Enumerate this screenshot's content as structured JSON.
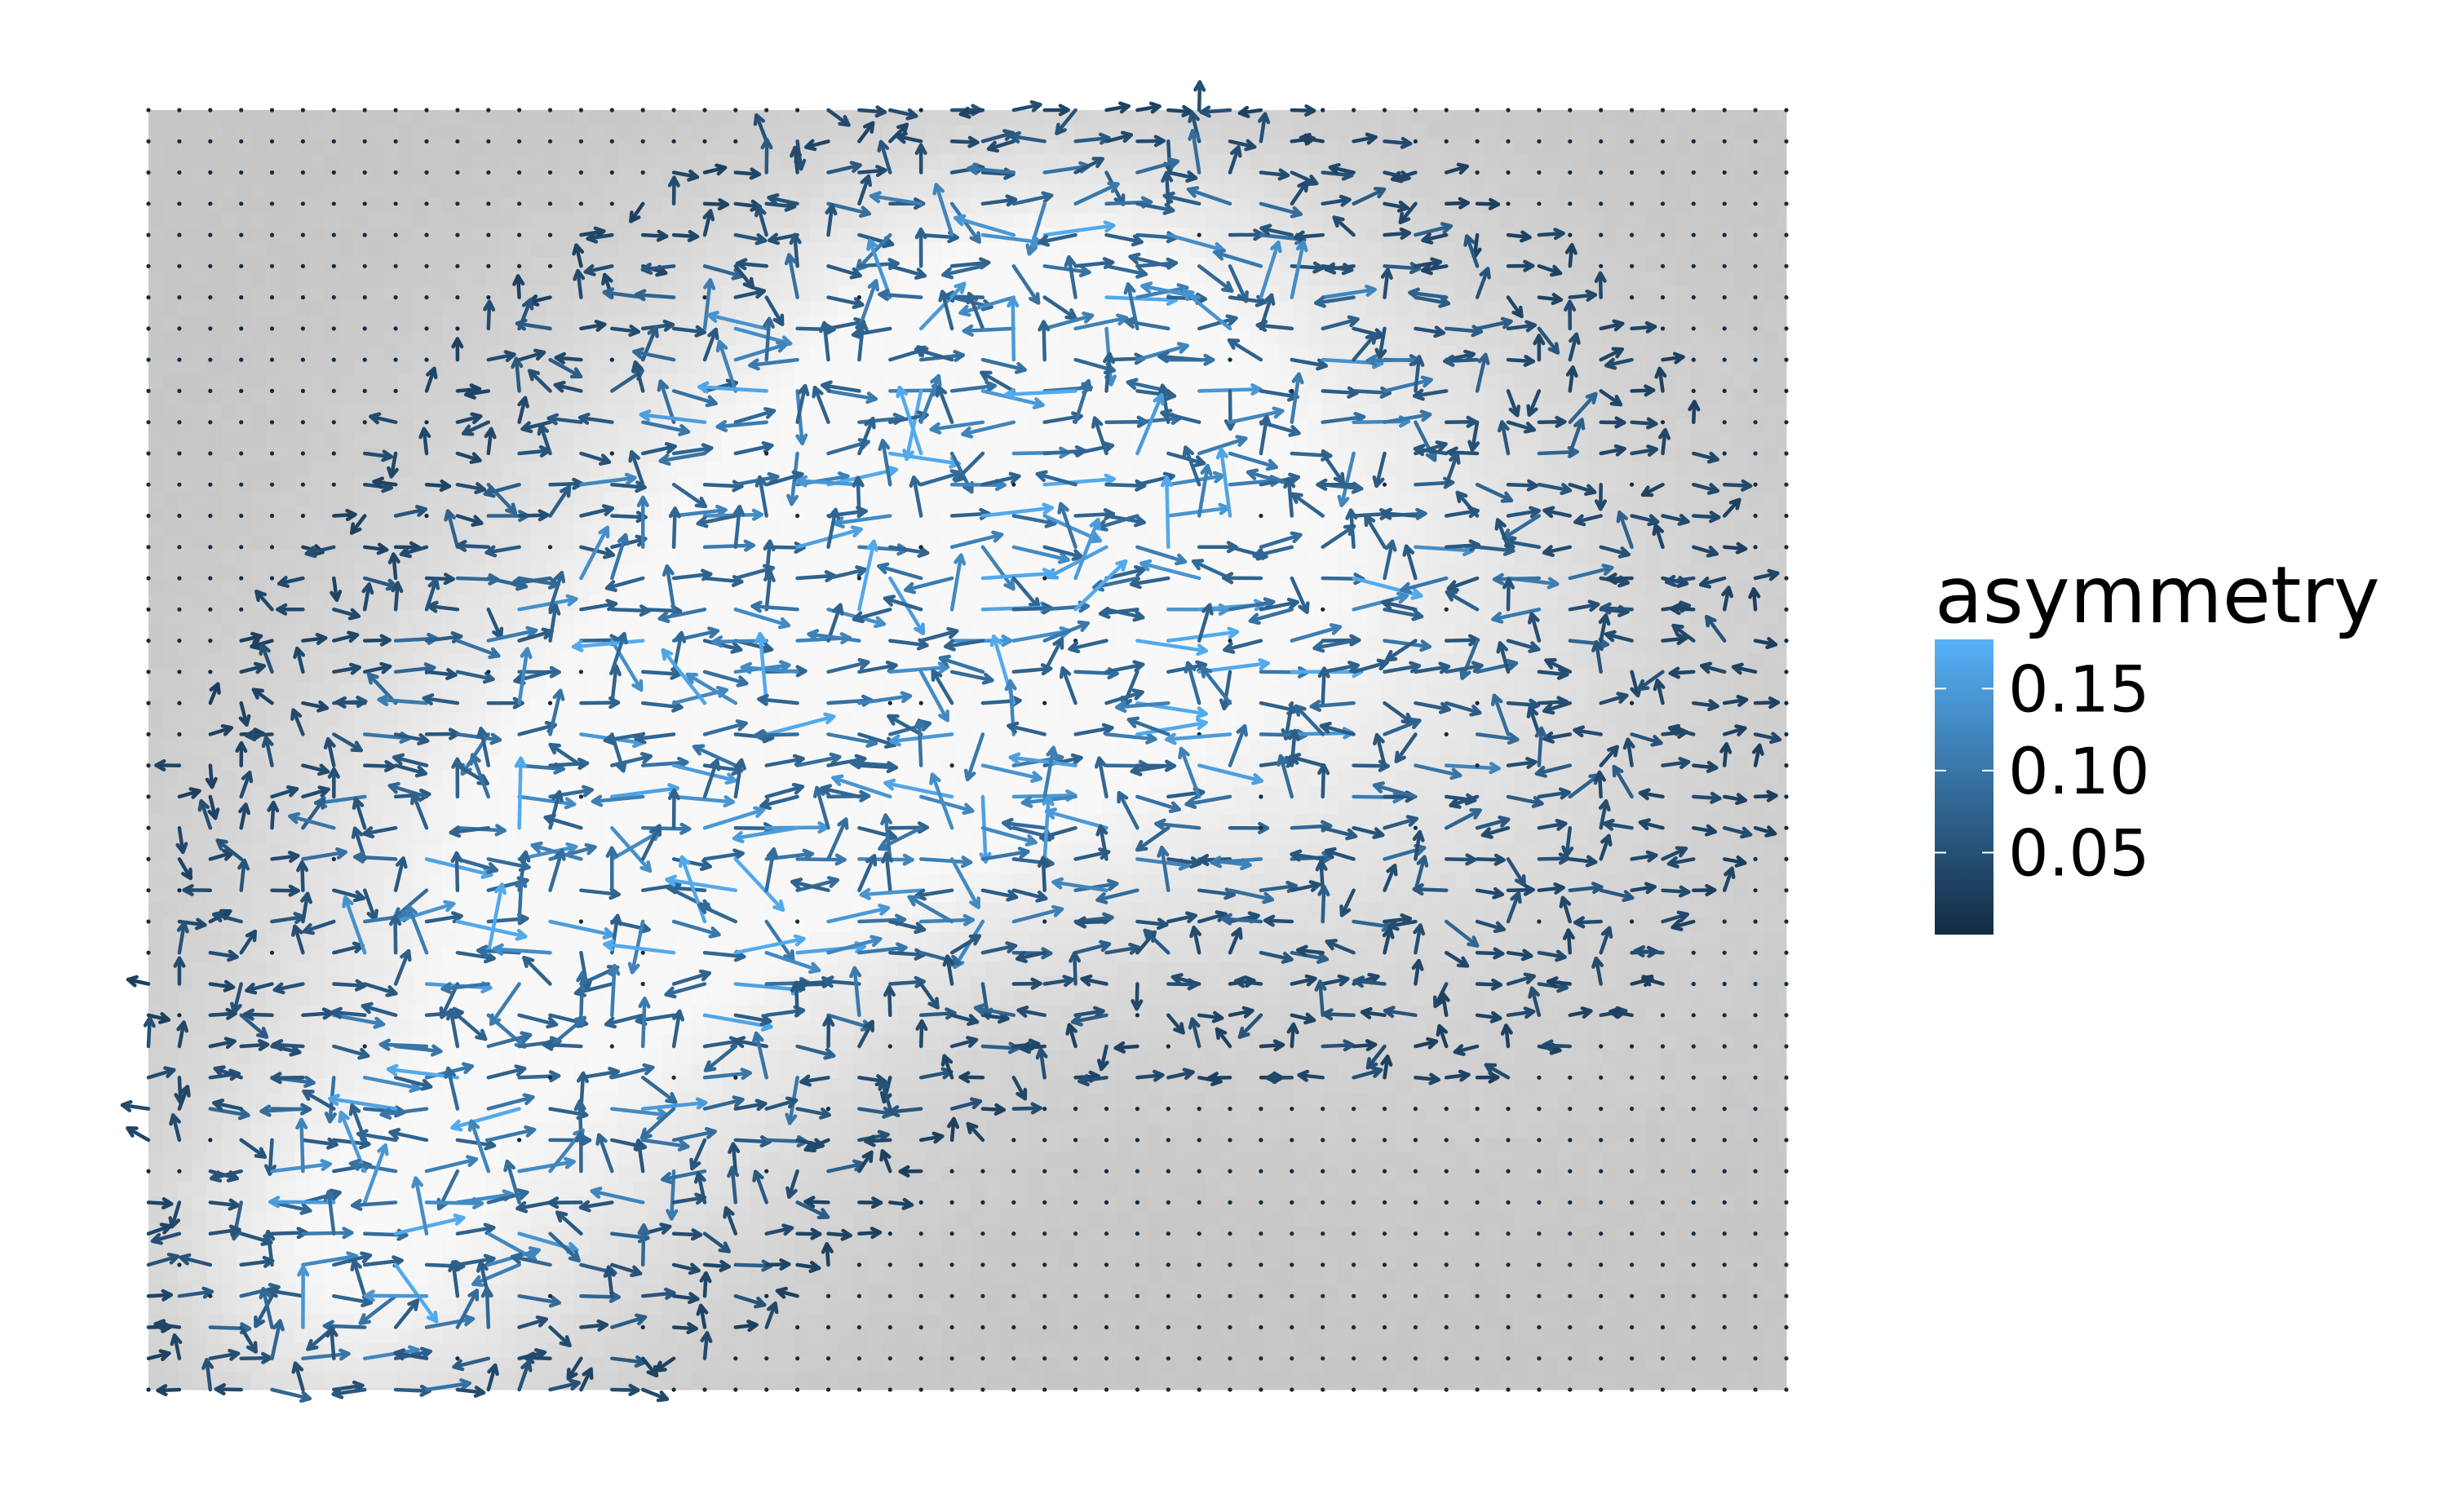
{
  "chart_data": {
    "type": "vector-field",
    "background": "grayscale density raster (white = high density, gray = low)",
    "arrow_color_variable": "asymmetry",
    "axes_visible": false,
    "grid": false,
    "legend": {
      "title": "asymmetry",
      "placement": "right",
      "scale": "continuous",
      "range": [
        0,
        0.18
      ],
      "ticks": [
        {
          "value": 0.05,
          "label": "0.05"
        },
        {
          "value": 0.1,
          "label": "0.10"
        },
        {
          "value": 0.15,
          "label": "0.15"
        }
      ],
      "colors": {
        "low": "#132b43",
        "high": "#56b1f7"
      }
    },
    "grid_size": {
      "columns": 54,
      "rows": 42
    },
    "panel_fill": "#c6c6c6",
    "density_peak_color": "#f8f8f8"
  }
}
